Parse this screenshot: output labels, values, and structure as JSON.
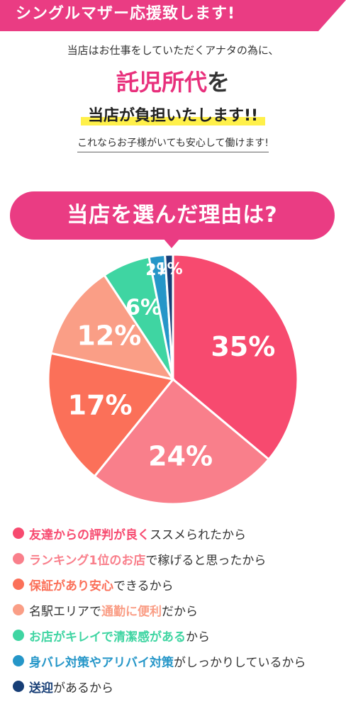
{
  "banner": {
    "text": "シングルマザー応援致します!"
  },
  "intro": {
    "line1": "当店はお仕事をしていただくアナタの為に、",
    "line2_highlight": "託児所代",
    "line2_rest": "を",
    "line3": "当店が負担いたします!!",
    "line4": "これならお子様がいても安心して働けます!"
  },
  "heading": "当店を選んだ理由は?",
  "chart_data": {
    "type": "pie",
    "title": "当店を選んだ理由は?",
    "slices": [
      {
        "label": "35%",
        "value": 35,
        "color": "#f74a6f"
      },
      {
        "label": "24%",
        "value": 24,
        "color": "#f97f8b"
      },
      {
        "label": "17%",
        "value": 17,
        "color": "#fb7059"
      },
      {
        "label": "12%",
        "value": 12,
        "color": "#fa9e86"
      },
      {
        "label": "6%",
        "value": 6,
        "color": "#3fd5a2"
      },
      {
        "label": "2%",
        "value": 2,
        "color": "#2596c8"
      },
      {
        "label": "1%",
        "value": 1,
        "color": "#173e76"
      }
    ]
  },
  "legend": [
    {
      "highlight": "友達からの評判が良く",
      "rest": "ススメられたから",
      "color": "#f74a6f"
    },
    {
      "highlight": "ランキング1位のお店",
      "rest": "で稼げると思ったから",
      "color": "#f97f8b"
    },
    {
      "highlight": "保証があり安心",
      "rest": "できるから",
      "color": "#fb7059"
    },
    {
      "prefix": "名駅エリアで",
      "highlight": "通勤に便利",
      "rest": "だから",
      "color": "#fa9e86"
    },
    {
      "highlight": "お店がキレイで清潔感がある",
      "rest": "から",
      "color": "#3fd5a2"
    },
    {
      "highlight": "身バレ対策やアリバイ対策",
      "rest": "がしっかりしているから",
      "color": "#2596c8"
    },
    {
      "highlight": "送迎",
      "rest": "があるから",
      "color": "#173e76"
    }
  ]
}
